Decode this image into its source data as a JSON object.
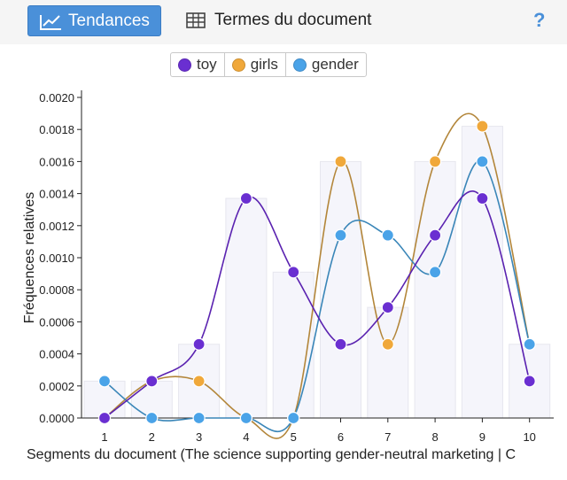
{
  "toolbar": {
    "tabs": [
      {
        "label": "Tendances",
        "icon": "line-chart-icon",
        "active": true
      },
      {
        "label": "Termes du document",
        "icon": "table-grid-icon",
        "active": false
      }
    ],
    "help_label": "?"
  },
  "colors": {
    "accent": "#4a90d9",
    "toy": "#6a2fd1",
    "girls": "#f0a83a",
    "gender": "#4aa3e8",
    "bars": "#f5f5fb"
  },
  "chart_data": {
    "type": "line",
    "x": [
      1,
      2,
      3,
      4,
      5,
      6,
      7,
      8,
      9,
      10
    ],
    "ylabel": "Fréquences relatives",
    "xlabel": "Segments du document (The science supporting gender-neutral marketing | C",
    "ylim": [
      0,
      0.002
    ],
    "yticks": [
      "0.0000",
      "0.0002",
      "0.0004",
      "0.0006",
      "0.0008",
      "0.0010",
      "0.0012",
      "0.0014",
      "0.0016",
      "0.0018",
      "0.0020"
    ],
    "legend_position": "top",
    "series": [
      {
        "name": "toy",
        "values": [
          0.0,
          0.00023,
          0.00046,
          0.00137,
          0.00091,
          0.00046,
          0.00069,
          0.00114,
          0.00137,
          0.00023
        ]
      },
      {
        "name": "girls",
        "values": [
          0.0,
          0.00023,
          0.00023,
          0.0,
          0.0,
          0.0016,
          0.00046,
          0.0016,
          0.00182,
          0.00046
        ]
      },
      {
        "name": "gender",
        "values": [
          0.00023,
          0.0,
          0.0,
          0.0,
          0.0,
          0.00114,
          0.00114,
          0.00091,
          0.0016,
          0.00046
        ]
      }
    ],
    "bars": [
      0.00023,
      0.00023,
      0.00046,
      0.00137,
      0.00091,
      0.0016,
      0.00069,
      0.0016,
      0.00182,
      0.00046
    ]
  }
}
